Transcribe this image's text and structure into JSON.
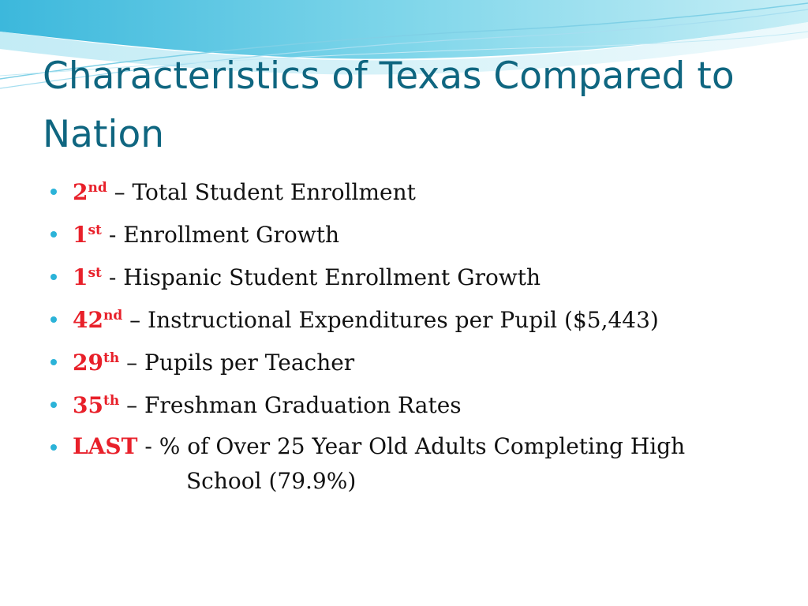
{
  "slide": {
    "title": "Characteristics of Texas Compared to Nation",
    "accent_color": "#0f6680",
    "rank_color": "#e8202a",
    "bullet_color": "#2bb3d8"
  },
  "bullets": [
    {
      "rank": "2",
      "suffix": "nd",
      "separator": " – ",
      "text": "Total Student Enrollment"
    },
    {
      "rank": "1",
      "suffix": "st",
      "separator": " - ",
      "text": "Enrollment Growth"
    },
    {
      "rank": "1",
      "suffix": "st",
      "separator": " - ",
      "text": "Hispanic Student Enrollment Growth"
    },
    {
      "rank": "42",
      "suffix": "nd",
      "separator": " – ",
      "text": "Instructional Expenditures per Pupil ($5,443)"
    },
    {
      "rank": "29",
      "suffix": "th",
      "separator": " – ",
      "text": "Pupils per Teacher"
    },
    {
      "rank": "35",
      "suffix": "th",
      "separator": " – ",
      "text": "Freshman Graduation Rates"
    },
    {
      "rank": "LAST",
      "suffix": "",
      "separator": " - ",
      "text": "% of Over 25 Year Old Adults Completing High",
      "continuation": "School (79.9%)"
    }
  ]
}
